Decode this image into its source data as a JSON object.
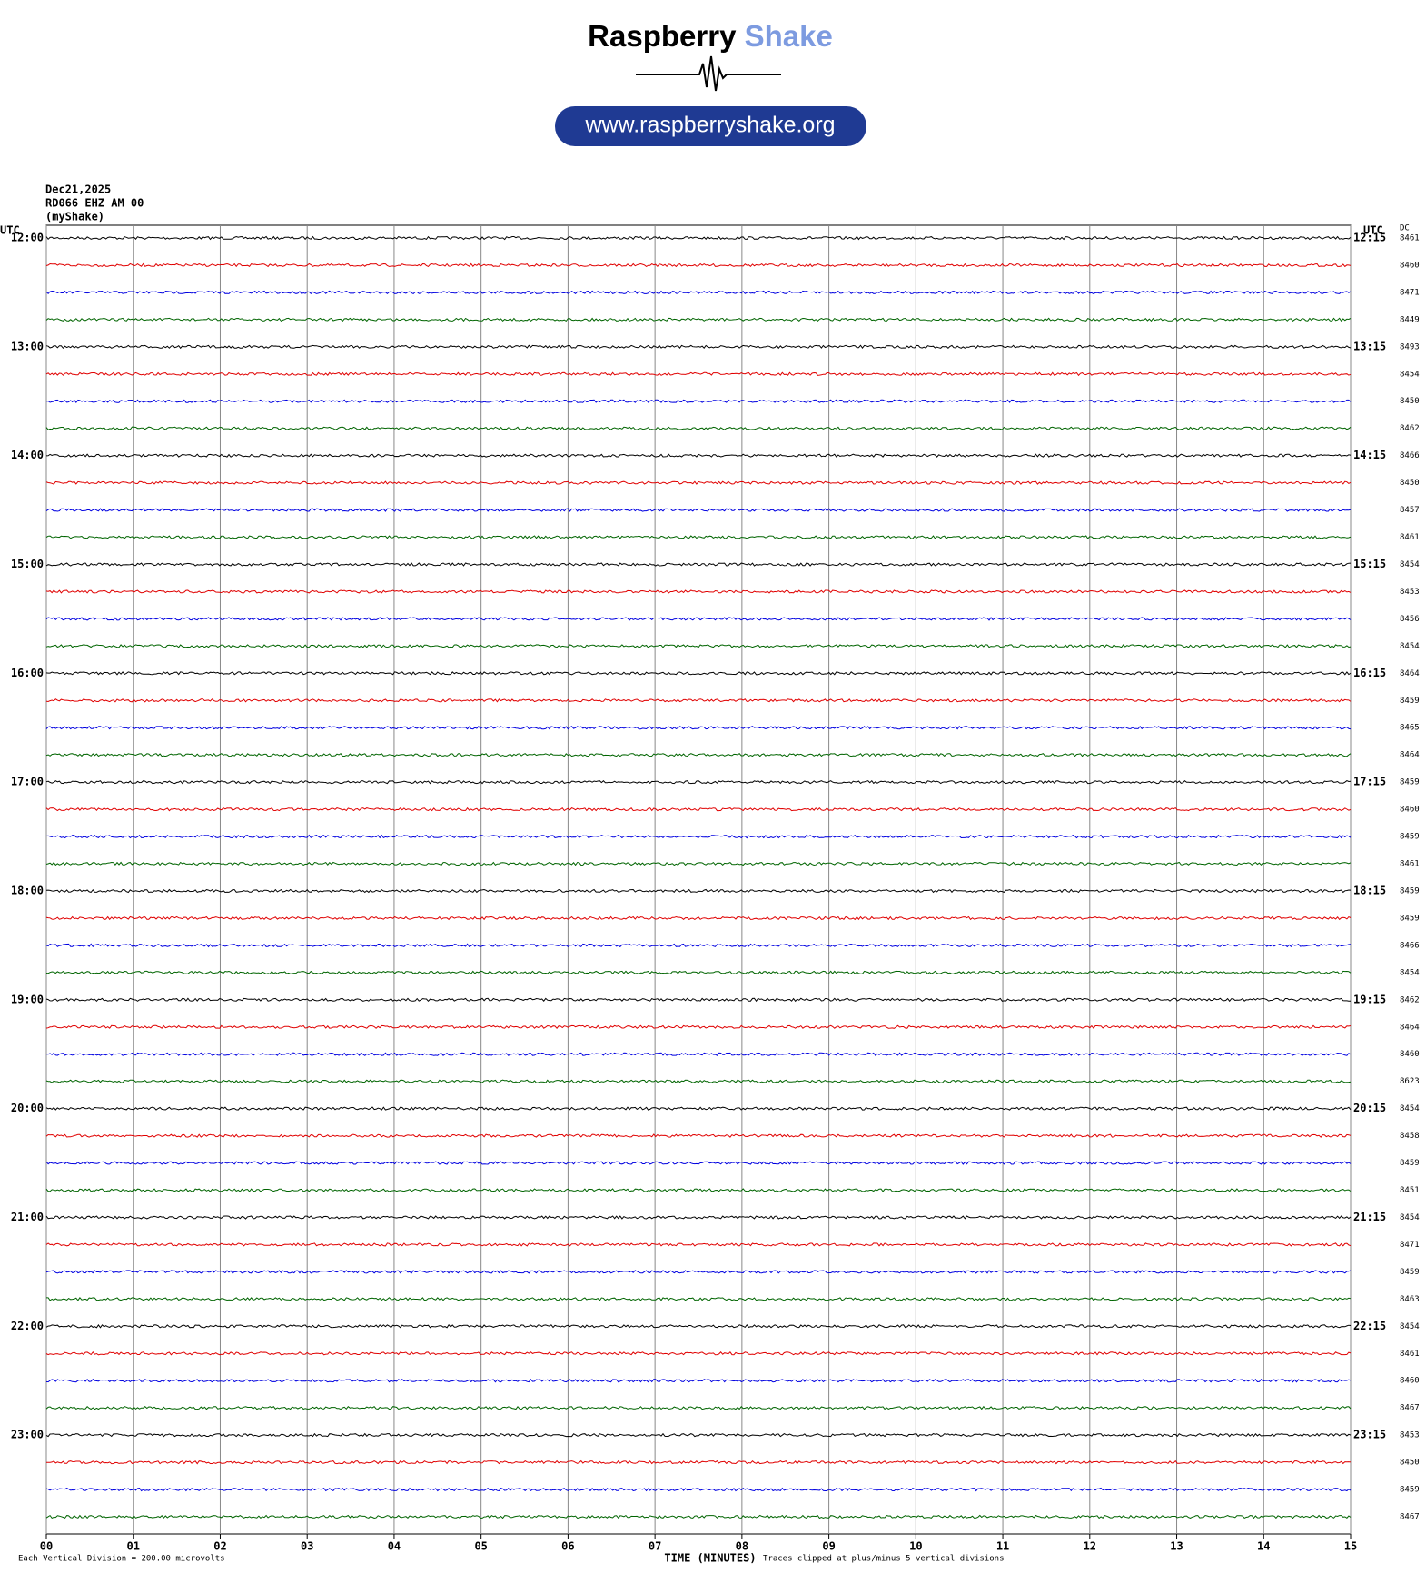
{
  "header": {
    "brand_1": "Raspberry",
    "brand_2": "Shake",
    "url": "www.raspberryshake.org"
  },
  "chart_data": {
    "type": "helicorder",
    "date": "Dec21,2025",
    "station": "RD066 EHZ AM 00",
    "source": "(myShake)",
    "left_axis_label": "UTC",
    "right_axis_label": "UTC",
    "dc_label": "DC",
    "xlabel": "TIME (MINUTES)",
    "scale_note": "Each Vertical Division =  200.00 microvolts",
    "clip_note": "Traces clipped at plus/minus 5 vertical divisions",
    "xlim": [
      0,
      15
    ],
    "xticks": [
      {
        "value": 0,
        "label": "00"
      },
      {
        "value": 1,
        "label": "01"
      },
      {
        "value": 2,
        "label": "02"
      },
      {
        "value": 3,
        "label": "03"
      },
      {
        "value": 4,
        "label": "04"
      },
      {
        "value": 5,
        "label": "05"
      },
      {
        "value": 6,
        "label": "06"
      },
      {
        "value": 7,
        "label": "07"
      },
      {
        "value": 8,
        "label": "08"
      },
      {
        "value": 9,
        "label": "09"
      },
      {
        "value": 10,
        "label": "10"
      },
      {
        "value": 11,
        "label": "11"
      },
      {
        "value": 12,
        "label": "12"
      },
      {
        "value": 13,
        "label": "13"
      },
      {
        "value": 14,
        "label": "14"
      },
      {
        "value": 15,
        "label": "15"
      }
    ],
    "row_labels_left": [
      "12:00",
      "13:00",
      "14:00",
      "15:00",
      "16:00",
      "17:00",
      "18:00",
      "19:00",
      "20:00",
      "21:00",
      "22:00",
      "23:00"
    ],
    "row_labels_right": [
      "12:15",
      "13:15",
      "14:15",
      "15:15",
      "16:15",
      "17:15",
      "18:15",
      "19:15",
      "20:15",
      "21:15",
      "22:15",
      "23:15"
    ],
    "dc_values": [
      8461,
      8460,
      8471,
      8449,
      8493,
      8454,
      8450,
      8462,
      8466,
      8450,
      8457,
      8461,
      8454,
      8453,
      8456,
      8454,
      8464,
      8459,
      8465,
      8464,
      8459,
      8460,
      8459,
      8461,
      8459,
      8459,
      8466,
      8454,
      8462,
      8464,
      8460,
      8623,
      8454,
      8458,
      8459,
      8451,
      8454,
      8471,
      8459,
      8463,
      8454,
      8461,
      8460,
      8467,
      8453,
      8450,
      8459,
      8467
    ],
    "colors": [
      "#000000",
      "#e00000",
      "#0000e0",
      "#006400"
    ]
  }
}
